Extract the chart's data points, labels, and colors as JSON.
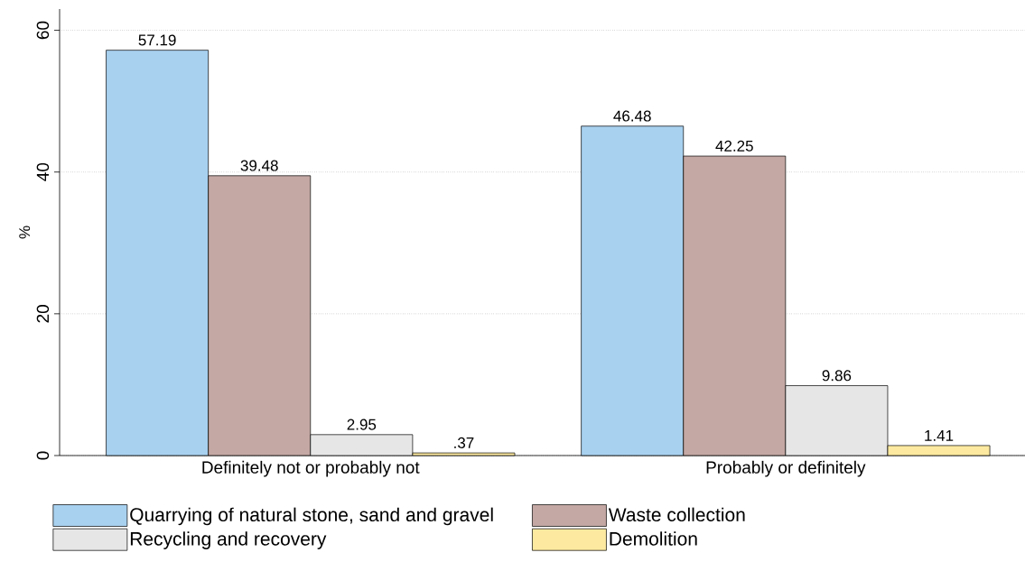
{
  "chart_data": {
    "type": "bar",
    "ylabel": "%",
    "categories": [
      "Definitely not or probably not",
      "Probably or definitely"
    ],
    "series": [
      {
        "name": "Quarrying of natural stone, sand and gravel",
        "color": "#a8d1f0",
        "values": [
          57.19,
          46.48
        ],
        "value_labels": [
          "57.19",
          "46.48"
        ]
      },
      {
        "name": "Waste collection",
        "color": "#c4a8a4",
        "values": [
          39.48,
          42.25
        ],
        "value_labels": [
          "39.48",
          "42.25"
        ]
      },
      {
        "name": "Recycling and recovery",
        "color": "#e6e6e6",
        "values": [
          2.95,
          9.86
        ],
        "value_labels": [
          "2.95",
          "9.86"
        ]
      },
      {
        "name": "Demolition",
        "color": "#fdeaa0",
        "values": [
          0.37,
          1.41
        ],
        "value_labels": [
          ".37",
          "1.41"
        ]
      }
    ],
    "ylim": [
      0,
      63
    ],
    "yticks": [
      0,
      20,
      40,
      60
    ],
    "grid": "y",
    "legend": "bottom"
  }
}
